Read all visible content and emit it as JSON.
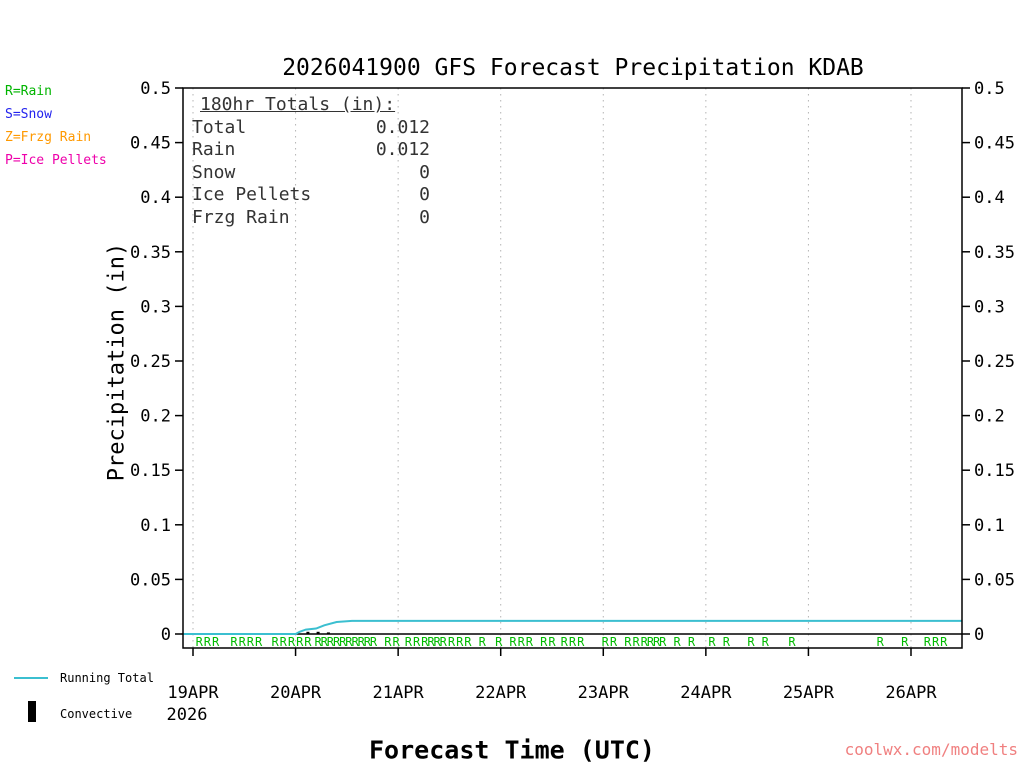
{
  "page": {
    "watermark": "coolwx.com/modelts",
    "watermark_color": "#f08080"
  },
  "type_legend": [
    {
      "label": "R=Rain",
      "color": "#00b400"
    },
    {
      "label": "S=Snow",
      "color": "#2222ee"
    },
    {
      "label": "Z=Frzg Rain",
      "color": "#ff9900"
    },
    {
      "label": "P=Ice Pellets",
      "color": "#ee00aa"
    }
  ],
  "totals_box": {
    "heading": "180hr Totals (in):",
    "rows": [
      {
        "label": "Total",
        "value": "0.012"
      },
      {
        "label": "Rain",
        "value": "0.012"
      },
      {
        "label": "Snow",
        "value": "0"
      },
      {
        "label": "Ice Pellets",
        "value": "0"
      },
      {
        "label": "Frzg Rain",
        "value": "0"
      }
    ]
  },
  "bottom_legend": {
    "running_total": "Running Total",
    "convective": "Convective"
  },
  "chart_data": {
    "type": "line",
    "title": "2026041900 GFS Forecast Precipitation KDAB",
    "xlabel": "Forecast Time (UTC)",
    "ylabel": "Precipitation (in)",
    "ylim": [
      0,
      0.5
    ],
    "ytick_values": [
      0,
      0.05,
      0.1,
      0.15,
      0.2,
      0.25,
      0.3,
      0.35,
      0.4,
      0.45,
      0.5
    ],
    "ytick_labels": [
      "0",
      "0.05",
      "0.1",
      "0.15",
      "0.2",
      "0.25",
      "0.3",
      "0.35",
      "0.4",
      "0.45",
      "0.5"
    ],
    "xtick_labels": [
      "19APR",
      "20APR",
      "21APR",
      "22APR",
      "23APR",
      "24APR",
      "25APR",
      "26APR"
    ],
    "xtick_days": [
      0,
      1,
      2,
      3,
      4,
      5,
      6,
      7
    ],
    "year_label": "2026",
    "x_range_days": [
      -0.1,
      7.5
    ],
    "grid": "vertical-dashed",
    "legend_position": "outside-left-top",
    "series": [
      {
        "name": "Running Total",
        "color": "#3bbfd0",
        "points": [
          [
            -0.1,
            0
          ],
          [
            1.0,
            0
          ],
          [
            1.04,
            0.002
          ],
          [
            1.1,
            0.004
          ],
          [
            1.2,
            0.005
          ],
          [
            1.28,
            0.008
          ],
          [
            1.4,
            0.011
          ],
          [
            1.55,
            0.012
          ],
          [
            7.5,
            0.012
          ]
        ]
      },
      {
        "name": "Convective",
        "color": "#000000",
        "points": [
          [
            -0.1,
            0
          ],
          [
            7.5,
            0
          ]
        ]
      }
    ],
    "convective_bars": [
      [
        1.12,
        0.002
      ],
      [
        1.22,
        0.002
      ],
      [
        1.32,
        0.0015
      ]
    ],
    "rain_markers": {
      "glyph": "R",
      "color": "#00bb00",
      "days": [
        0.06,
        0.14,
        0.22,
        0.4,
        0.48,
        0.56,
        0.64,
        0.8,
        0.88,
        0.96,
        1.04,
        1.12,
        1.22,
        1.28,
        1.34,
        1.4,
        1.46,
        1.52,
        1.58,
        1.64,
        1.7,
        1.76,
        1.9,
        1.98,
        2.1,
        2.18,
        2.26,
        2.32,
        2.38,
        2.44,
        2.52,
        2.6,
        2.68,
        2.82,
        2.98,
        3.12,
        3.2,
        3.28,
        3.42,
        3.5,
        3.62,
        3.7,
        3.78,
        4.02,
        4.1,
        4.24,
        4.32,
        4.4,
        4.46,
        4.52,
        4.58,
        4.72,
        4.86,
        5.06,
        5.2,
        5.44,
        5.58,
        5.84,
        6.7,
        6.94,
        7.16,
        7.24,
        7.32
      ]
    }
  }
}
